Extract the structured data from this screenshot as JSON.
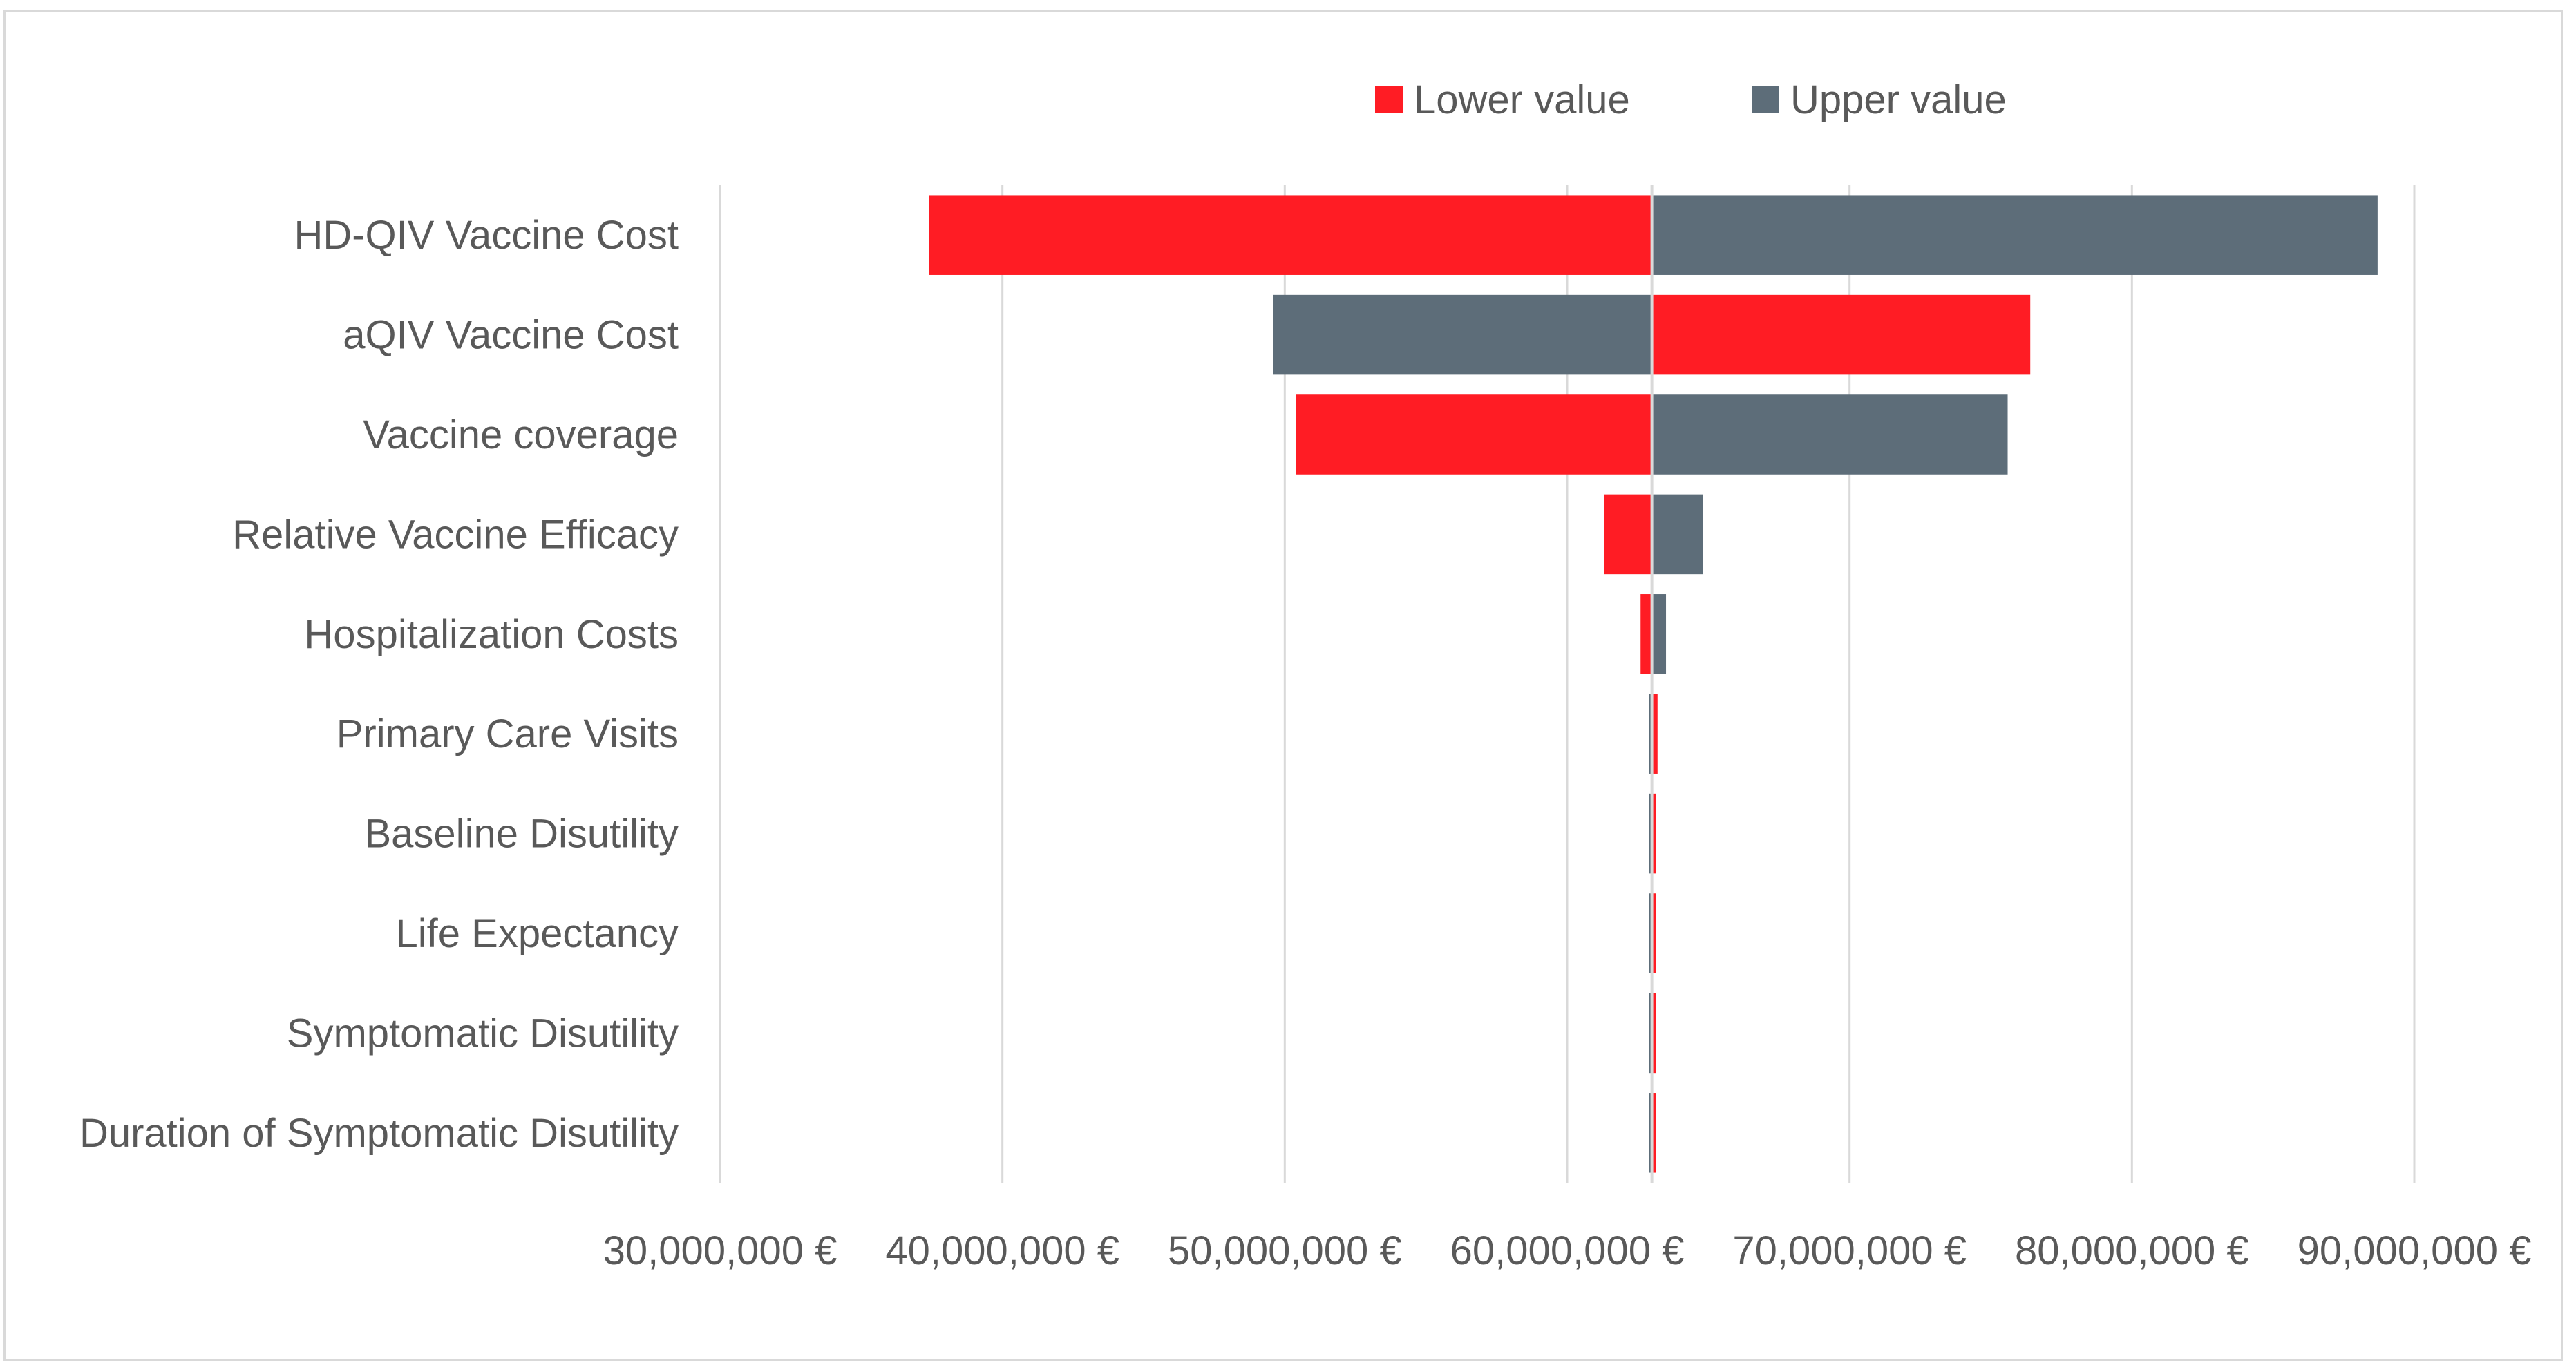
{
  "chart_data": {
    "type": "tornado",
    "title": "",
    "xlabel": "",
    "ylabel": "",
    "base_value": 63000000,
    "xlim": [
      30000000,
      90000000
    ],
    "x_ticks": [
      30000000,
      40000000,
      50000000,
      60000000,
      70000000,
      80000000,
      90000000
    ],
    "x_tick_labels": [
      "30,000,000 €",
      "40,000,000 €",
      "50,000,000 €",
      "60,000,000 €",
      "70,000,000 €",
      "80,000,000 €",
      "90,000,000 €"
    ],
    "grid": "vertical",
    "legend_position": "top",
    "categories": [
      "HD-QIV Vaccine Cost",
      "aQIV Vaccine Cost",
      "Vaccine coverage",
      "Relative Vaccine Efficacy",
      "Hospitalization Costs",
      "Primary Care Visits",
      "Baseline Disutility",
      "Life Expectancy",
      "Symptomatic Disutility",
      "Duration of Symptomatic Disutility"
    ],
    "series": [
      {
        "name": "Lower value",
        "color": "#ff1c24",
        "values": [
          37400000,
          76400000,
          50400000,
          61300000,
          62600000,
          63200000,
          63150000,
          63150000,
          63150000,
          63150000
        ]
      },
      {
        "name": "Upper value",
        "color": "#5d6d79",
        "values": [
          88700000,
          49600000,
          75600000,
          64800000,
          63500000,
          62900000,
          62900000,
          62900000,
          62900000,
          62900000
        ]
      }
    ]
  }
}
